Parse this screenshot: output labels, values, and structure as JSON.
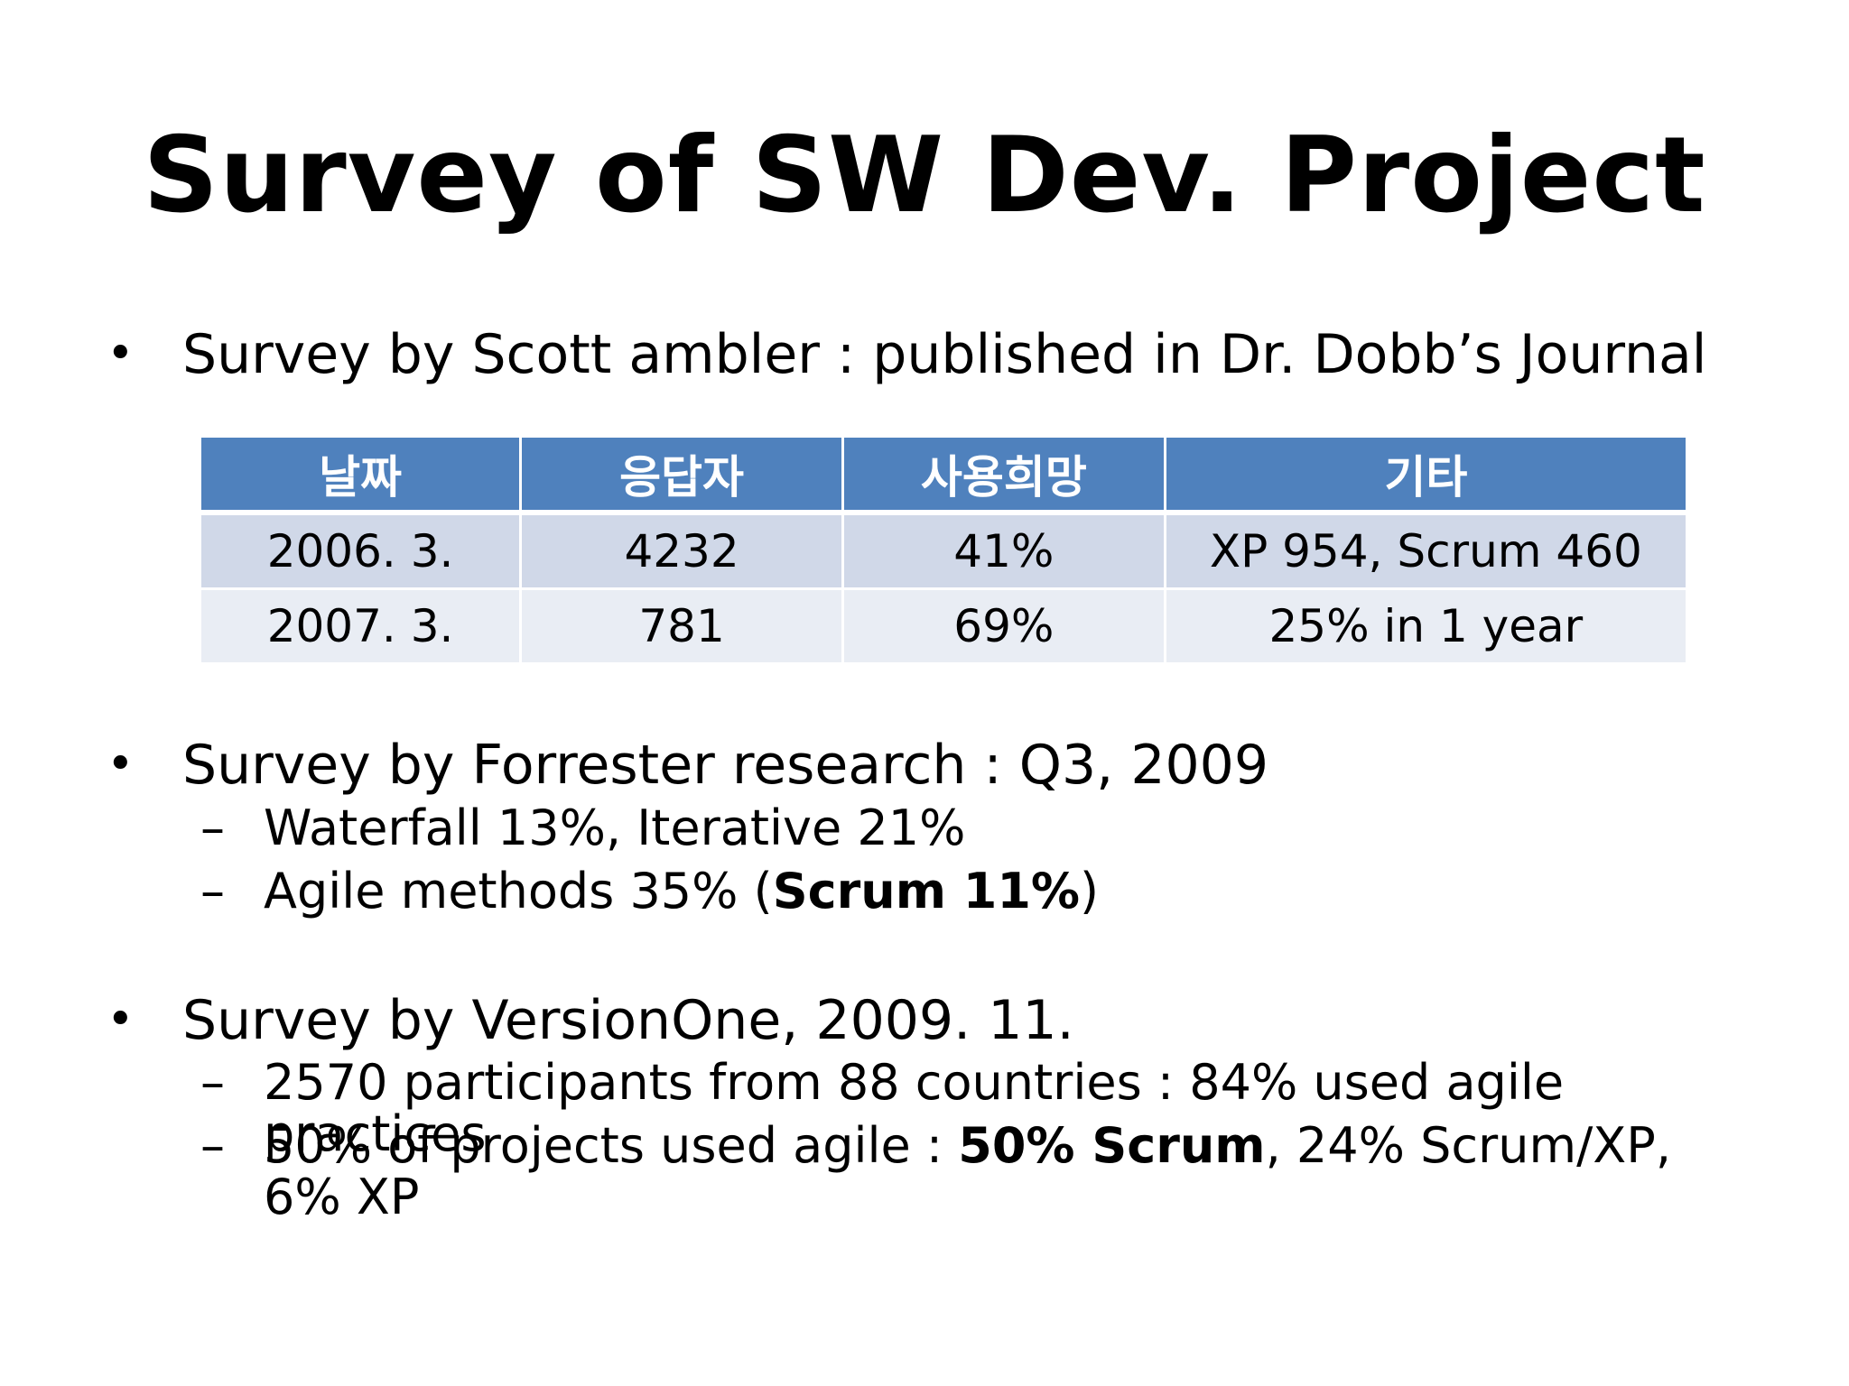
{
  "title": "Survey of SW Dev. Project",
  "bullets": [
    {
      "text": "Survey by Scott ambler : published in Dr. Dobb’s Journal"
    },
    {
      "text": "Survey by Forrester research : Q3, 2009"
    },
    {
      "text": "Survey by VersionOne, 2009. 11."
    }
  ],
  "table": {
    "headers": [
      "날짜",
      "응답자",
      "사용희망",
      "기타"
    ],
    "rows": [
      [
        "2006. 3.",
        "4232",
        "41%",
        "XP 954, Scrum 460"
      ],
      [
        "2007. 3.",
        "781",
        "69%",
        "25% in 1 year"
      ]
    ]
  },
  "forrester_items": [
    {
      "text": "Waterfall 13%, Iterative 21%"
    },
    {
      "pre": "Agile methods 35% (",
      "bold": "Scrum 11%",
      "post": ")"
    }
  ],
  "versionone_items": [
    {
      "text": "2570 participants from 88 countries : 84% used agile practices"
    },
    {
      "pre": "50% of projects used agile : ",
      "bold": "50% Scrum",
      "post": ", 24% Scrum/XP, 6% XP"
    }
  ],
  "symbols": {
    "bullet": "•",
    "dash": "–"
  }
}
